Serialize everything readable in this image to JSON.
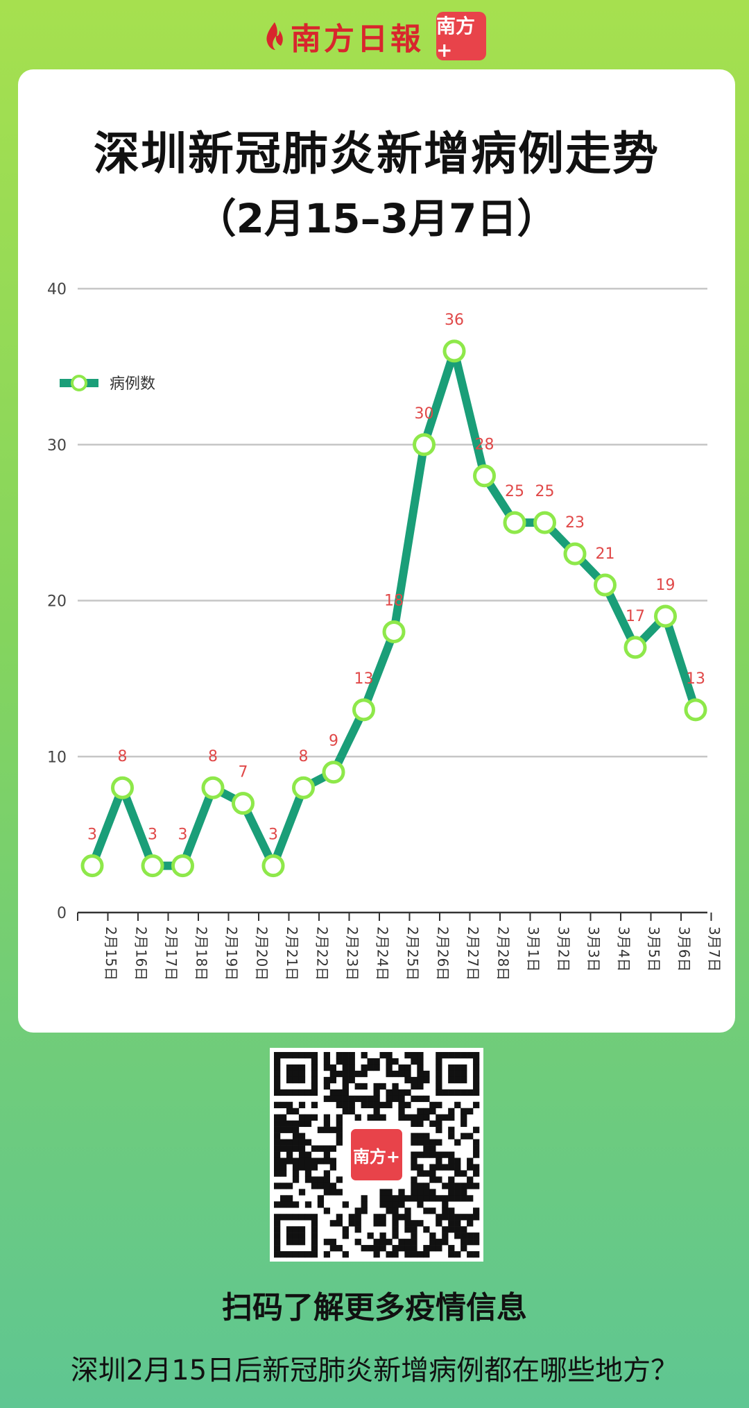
{
  "header": {
    "brand": "南方日報",
    "app_badge": "南方+"
  },
  "chart_data": {
    "type": "line",
    "title": "深圳新冠肺炎新增病例走势",
    "subtitle": "（2月15–3月7日）",
    "categories": [
      "2月15日",
      "2月16日",
      "2月17日",
      "2月18日",
      "2月19日",
      "2月20日",
      "2月21日",
      "2月22日",
      "2月23日",
      "2月24日",
      "2月25日",
      "2月26日",
      "2月27日",
      "2月28日",
      "3月1日",
      "3月2日",
      "3月3日",
      "3月4日",
      "3月5日",
      "3月6日",
      "3月7日"
    ],
    "series": [
      {
        "name": "病例数",
        "values": [
          3,
          8,
          3,
          3,
          8,
          7,
          3,
          8,
          9,
          13,
          18,
          30,
          36,
          28,
          25,
          25,
          23,
          21,
          17,
          19,
          13
        ]
      }
    ],
    "ylim": [
      0,
      40
    ],
    "yticks": [
      0,
      10,
      20,
      30,
      40
    ],
    "grid": true,
    "legend": "top-left",
    "colors": {
      "line": "#1a9e78",
      "marker": "#8ee84a",
      "label": "#e04848",
      "grid": "#c6c6c6"
    }
  },
  "qr": {
    "logo_text": "南方+"
  },
  "footer": {
    "qr_caption": "扫码了解更多疫情信息",
    "link_text": "深圳2月15日后新冠肺炎新增病例都在哪些地方？"
  }
}
